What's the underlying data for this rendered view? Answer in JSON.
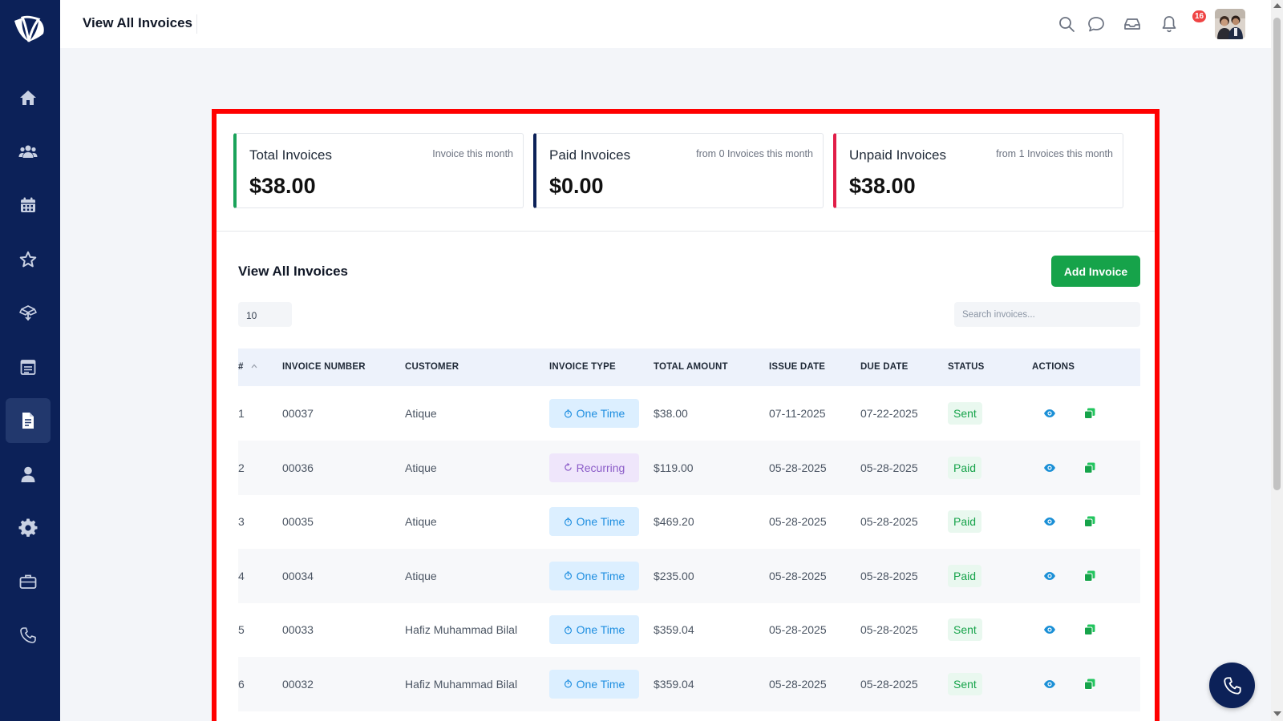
{
  "header": {
    "title": "View All Invoices",
    "notification_count": "16",
    "icons": [
      "search-icon",
      "chat-icon",
      "inbox-icon",
      "bell-icon"
    ]
  },
  "sidebar": {
    "items": [
      {
        "icon": "home-icon"
      },
      {
        "icon": "users-icon"
      },
      {
        "icon": "calendar-icon"
      },
      {
        "icon": "star-icon"
      },
      {
        "icon": "box-icon"
      },
      {
        "icon": "schedule-icon"
      },
      {
        "icon": "invoice-icon",
        "active": true
      },
      {
        "icon": "user-icon"
      },
      {
        "icon": "gear-icon"
      },
      {
        "icon": "briefcase-icon"
      },
      {
        "icon": "phone-icon"
      }
    ]
  },
  "stats": [
    {
      "title": "Total Invoices",
      "subtitle": "Invoice this month",
      "value": "$38.00",
      "accent": "#1aa35a"
    },
    {
      "title": "Paid Invoices",
      "subtitle": "from 0 Invoices this month",
      "value": "$0.00",
      "accent": "#0c2158"
    },
    {
      "title": "Unpaid Invoices",
      "subtitle": "from 1 Invoices this month",
      "value": "$38.00",
      "accent": "#e11d48"
    }
  ],
  "section": {
    "title": "View All Invoices",
    "add_button": "Add Invoice",
    "page_size": "10",
    "search_placeholder": "Search invoices..."
  },
  "table": {
    "columns": [
      "#",
      "INVOICE NUMBER",
      "CUSTOMER",
      "INVOICE TYPE",
      "TOTAL AMOUNT",
      "ISSUE DATE",
      "DUE DATE",
      "STATUS",
      "ACTIONS"
    ],
    "rows": [
      {
        "num": "1",
        "invoice": "00037",
        "customer": "Atique",
        "type": "One Time",
        "amount": "$38.00",
        "issue": "07-11-2025",
        "due": "07-22-2025",
        "status": "Sent"
      },
      {
        "num": "2",
        "invoice": "00036",
        "customer": "Atique",
        "type": "Recurring",
        "amount": "$119.00",
        "issue": "05-28-2025",
        "due": "05-28-2025",
        "status": "Paid"
      },
      {
        "num": "3",
        "invoice": "00035",
        "customer": "Atique",
        "type": "One Time",
        "amount": "$469.20",
        "issue": "05-28-2025",
        "due": "05-28-2025",
        "status": "Paid"
      },
      {
        "num": "4",
        "invoice": "00034",
        "customer": "Atique",
        "type": "One Time",
        "amount": "$235.00",
        "issue": "05-28-2025",
        "due": "05-28-2025",
        "status": "Paid"
      },
      {
        "num": "5",
        "invoice": "00033",
        "customer": "Hafiz Muhammad Bilal",
        "type": "One Time",
        "amount": "$359.04",
        "issue": "05-28-2025",
        "due": "05-28-2025",
        "status": "Sent"
      },
      {
        "num": "6",
        "invoice": "00032",
        "customer": "Hafiz Muhammad Bilal",
        "type": "One Time",
        "amount": "$359.04",
        "issue": "05-28-2025",
        "due": "05-28-2025",
        "status": "Sent"
      }
    ]
  },
  "colors": {
    "sidebar": "#0c2158",
    "primary_button": "#16a34a",
    "highlight_border": "#ff0000"
  }
}
